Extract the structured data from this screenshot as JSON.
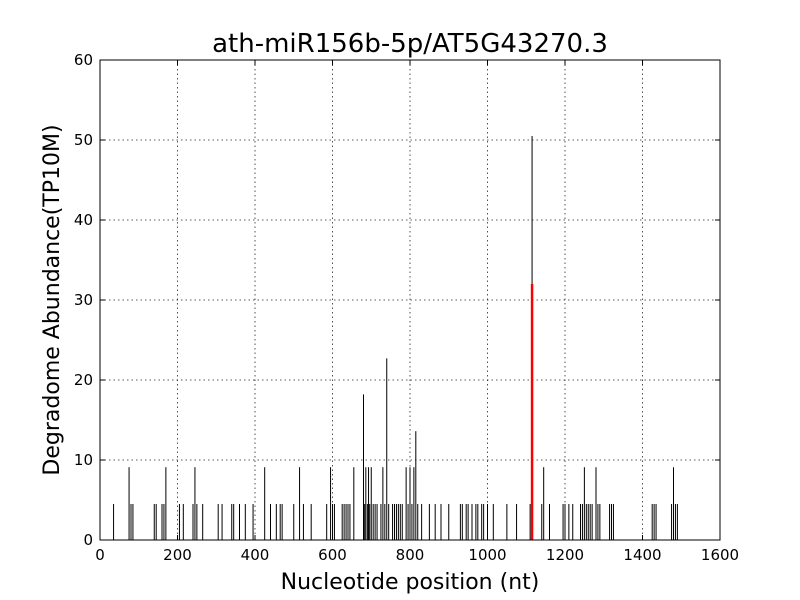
{
  "chart_data": {
    "type": "bar",
    "title": "ath-miR156b-5p/AT5G43270.3",
    "xlabel": "Nucleotide position (nt)",
    "ylabel": "Degradome Abundance(TP10M)",
    "xlim": [
      0,
      1600
    ],
    "ylim": [
      0,
      60
    ],
    "xticks": [
      0,
      200,
      400,
      600,
      800,
      1000,
      1200,
      1400,
      1600
    ],
    "yticks": [
      0,
      10,
      20,
      30,
      40,
      50,
      60
    ],
    "grid": true,
    "series": [
      {
        "color": "#000000",
        "x": [
          35,
          75,
          80,
          85,
          140,
          145,
          160,
          165,
          170,
          205,
          215,
          240,
          245,
          250,
          265,
          305,
          315,
          340,
          345,
          360,
          375,
          395,
          425,
          440,
          455,
          465,
          470,
          500,
          515,
          525,
          545,
          585,
          595,
          600,
          605,
          625,
          630,
          635,
          640,
          645,
          655,
          680,
          683,
          686,
          690,
          693,
          696,
          700,
          705,
          710,
          715,
          725,
          730,
          735,
          740,
          745,
          755,
          760,
          765,
          770,
          775,
          780,
          790,
          795,
          800,
          805,
          810,
          815,
          820,
          830,
          850,
          865,
          880,
          900,
          930,
          935,
          945,
          950,
          960,
          970,
          975,
          985,
          990,
          1000,
          1015,
          1050,
          1075,
          1110,
          1115,
          1140,
          1145,
          1160,
          1195,
          1200,
          1210,
          1220,
          1240,
          1245,
          1250,
          1255,
          1260,
          1265,
          1270,
          1280,
          1285,
          1290,
          1315,
          1320,
          1325,
          1425,
          1430,
          1435,
          1475,
          1480,
          1485,
          1490
        ],
        "y": [
          4.5,
          9.1,
          4.5,
          4.5,
          4.5,
          4.5,
          4.5,
          4.5,
          9.1,
          4.5,
          4.5,
          4.5,
          9.1,
          4.5,
          4.5,
          4.5,
          4.5,
          4.5,
          4.5,
          4.5,
          4.5,
          4.5,
          9.1,
          4.5,
          4.5,
          4.5,
          4.5,
          4.5,
          9.1,
          4.5,
          4.5,
          4.5,
          9.1,
          4.5,
          4.5,
          4.5,
          4.5,
          4.5,
          4.5,
          4.5,
          9.1,
          18.2,
          4.5,
          9.1,
          4.5,
          9.1,
          4.5,
          9.1,
          4.5,
          4.5,
          4.5,
          4.5,
          9.1,
          4.5,
          22.7,
          4.5,
          4.5,
          4.5,
          4.5,
          4.5,
          4.5,
          4.5,
          9.1,
          4.5,
          9.1,
          4.5,
          9.1,
          13.6,
          4.5,
          4.5,
          4.5,
          4.5,
          4.5,
          4.5,
          4.5,
          4.5,
          4.5,
          4.5,
          4.5,
          4.5,
          4.5,
          4.5,
          4.5,
          4.5,
          4.5,
          4.5,
          4.5,
          4.5,
          50.5,
          4.5,
          9.1,
          4.5,
          4.5,
          4.5,
          4.5,
          4.5,
          4.5,
          4.5,
          9.1,
          4.5,
          4.5,
          4.5,
          4.5,
          9.1,
          4.5,
          4.5,
          4.5,
          4.5,
          4.5,
          4.5,
          4.5,
          4.5,
          4.5,
          9.1,
          4.5,
          4.5
        ]
      },
      {
        "color": "#ff0000",
        "x": [
          1115
        ],
        "y": [
          32
        ]
      }
    ]
  }
}
